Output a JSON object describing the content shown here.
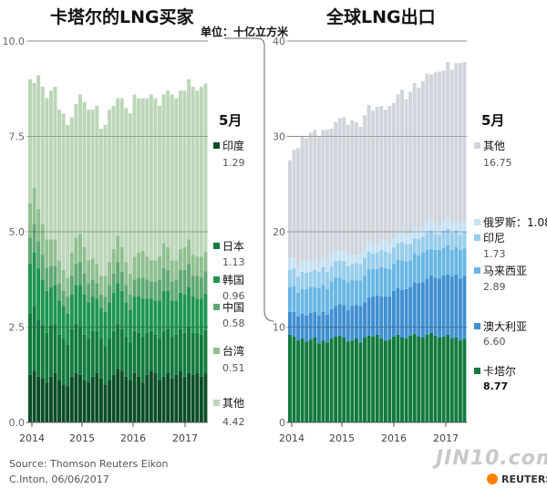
{
  "header": {
    "left_title": "卡塔尔的LNG买家",
    "right_title": "全球LNG出口",
    "unit": "单位：十亿立方米"
  },
  "footer": {
    "source": "Source: Thomson Reuters Eikon",
    "credit": "C.Inton,  06/06/2017",
    "watermark": "JIN10.com",
    "brand": "REUTERS"
  },
  "chart_data": [
    {
      "type": "area",
      "stacked": true,
      "title": "卡塔尔的LNG买家",
      "ylabel": "单位：十亿立方米",
      "ylim": [
        0,
        10
      ],
      "yticks": [
        "0.0",
        "2.5",
        "5.0",
        "7.5",
        "10.0"
      ],
      "xticks": [
        "2014",
        "2015",
        "2016",
        "2017"
      ],
      "month_label": "5月",
      "x_start": "2013-11",
      "x_end": "2017-05",
      "series": [
        {
          "name": "印度",
          "latest": "1.29",
          "color": "#0a4d26",
          "values": [
            1.25,
            1.35,
            1.2,
            1.15,
            1.05,
            1.2,
            1.3,
            1.1,
            1.0,
            0.95,
            1.2,
            1.3,
            1.25,
            1.1,
            1.05,
            1.2,
            1.3,
            1.15,
            1.0,
            1.1,
            1.25,
            1.4,
            1.35,
            1.2,
            1.1,
            1.3,
            1.2,
            1.05,
            1.25,
            1.35,
            1.3,
            1.1,
            1.2,
            1.3,
            1.15,
            1.25,
            1.35,
            1.2,
            1.3,
            1.25,
            1.3,
            1.2,
            1.29
          ]
        },
        {
          "name": "日本",
          "latest": "1.13",
          "color": "#117a3d",
          "values": [
            1.6,
            1.7,
            1.5,
            1.4,
            1.3,
            1.35,
            1.3,
            1.2,
            1.2,
            1.1,
            1.25,
            1.3,
            1.25,
            1.2,
            1.15,
            1.2,
            1.1,
            1.05,
            1.0,
            1.1,
            1.15,
            1.2,
            1.1,
            1.05,
            1.0,
            1.1,
            1.15,
            1.2,
            1.1,
            1.05,
            1.0,
            1.1,
            1.2,
            1.15,
            1.1,
            1.05,
            1.1,
            1.15,
            1.2,
            1.1,
            1.05,
            1.1,
            1.13
          ]
        },
        {
          "name": "韩国",
          "latest": "0.96",
          "color": "#1e9550",
          "values": [
            1.3,
            1.4,
            1.35,
            1.2,
            1.1,
            1.0,
            1.0,
            0.9,
            0.85,
            0.8,
            0.9,
            1.0,
            1.1,
            1.05,
            0.95,
            0.9,
            0.85,
            0.8,
            0.9,
            0.95,
            1.0,
            1.05,
            1.0,
            0.9,
            0.85,
            0.9,
            0.95,
            1.0,
            0.9,
            0.85,
            0.9,
            1.0,
            1.05,
            1.0,
            0.95,
            0.9,
            0.95,
            1.0,
            1.05,
            0.95,
            0.9,
            0.95,
            0.96
          ]
        },
        {
          "name": "中国",
          "latest": "0.58",
          "color": "#5fa873",
          "values": [
            0.7,
            0.75,
            0.7,
            0.65,
            0.6,
            0.55,
            0.5,
            0.45,
            0.4,
            0.45,
            0.5,
            0.55,
            0.6,
            0.55,
            0.5,
            0.45,
            0.4,
            0.35,
            0.4,
            0.45,
            0.5,
            0.55,
            0.5,
            0.45,
            0.4,
            0.45,
            0.5,
            0.55,
            0.5,
            0.45,
            0.5,
            0.55,
            0.6,
            0.55,
            0.5,
            0.55,
            0.6,
            0.65,
            0.6,
            0.55,
            0.6,
            0.55,
            0.58
          ]
        },
        {
          "name": "台湾",
          "latest": "0.51",
          "color": "#8fbf8f",
          "values": [
            0.9,
            0.95,
            0.85,
            0.8,
            0.75,
            0.7,
            0.7,
            0.6,
            0.55,
            0.5,
            0.6,
            0.7,
            0.75,
            0.7,
            0.6,
            0.55,
            0.5,
            0.5,
            0.55,
            0.6,
            0.65,
            0.7,
            0.65,
            0.6,
            0.55,
            0.6,
            0.65,
            0.7,
            0.6,
            0.55,
            0.55,
            0.6,
            0.65,
            0.6,
            0.55,
            0.5,
            0.55,
            0.6,
            0.65,
            0.55,
            0.5,
            0.55,
            0.51
          ]
        },
        {
          "name": "其他",
          "latest": "4.42",
          "color": "#bcd6b8",
          "values": [
            3.25,
            2.75,
            3.5,
            3.6,
            3.7,
            3.9,
            4.0,
            3.95,
            4.1,
            4.0,
            3.55,
            3.5,
            3.65,
            3.8,
            3.95,
            3.9,
            4.15,
            3.85,
            3.95,
            4.0,
            3.75,
            3.6,
            3.9,
            4.05,
            4.2,
            4.25,
            4.05,
            4.0,
            4.15,
            4.35,
            4.25,
            3.95,
            3.9,
            4.1,
            4.35,
            4.25,
            4.15,
            4.1,
            4.2,
            4.4,
            4.35,
            4.45,
            4.42
          ]
        }
      ]
    },
    {
      "type": "area",
      "stacked": true,
      "title": "全球LNG出口",
      "ylim": [
        0,
        40
      ],
      "yticks": [
        "0",
        "10",
        "20",
        "30",
        "40"
      ],
      "xticks": [
        "2014",
        "2015",
        "2016",
        "2017"
      ],
      "month_label": "5月",
      "x_start": "2013-11",
      "x_end": "2017-05",
      "series": [
        {
          "name": "卡塔尔",
          "latest": "8.77",
          "color": "#117a3d",
          "values": [
            9.2,
            9.0,
            8.6,
            8.8,
            8.5,
            8.7,
            8.9,
            8.3,
            8.6,
            8.4,
            8.8,
            9.0,
            9.1,
            8.9,
            8.5,
            8.6,
            8.8,
            8.4,
            8.9,
            9.1,
            9.0,
            9.2,
            8.8,
            8.6,
            8.7,
            9.0,
            9.2,
            8.9,
            8.8,
            9.1,
            9.3,
            9.0,
            8.9,
            9.2,
            9.4,
            9.1,
            8.9,
            9.0,
            9.2,
            8.8,
            8.9,
            8.6,
            8.77
          ]
        },
        {
          "name": "澳大利亚",
          "latest": "6.60",
          "color": "#3f8fd2",
          "values": [
            2.4,
            2.6,
            2.5,
            2.6,
            2.7,
            2.8,
            2.7,
            2.9,
            3.0,
            2.9,
            3.1,
            3.2,
            3.3,
            3.4,
            3.3,
            3.6,
            3.5,
            3.8,
            3.7,
            4.0,
            4.2,
            4.1,
            4.4,
            4.6,
            4.5,
            4.8,
            4.9,
            5.0,
            5.2,
            5.1,
            5.4,
            5.6,
            5.8,
            5.9,
            6.0,
            6.1,
            6.2,
            6.4,
            6.3,
            6.5,
            6.6,
            6.5,
            6.6
          ]
        },
        {
          "name": "马来西亚",
          "latest": "2.89",
          "color": "#68b6e4",
          "values": [
            2.6,
            2.7,
            2.5,
            2.6,
            2.8,
            2.7,
            2.6,
            2.9,
            2.8,
            2.7,
            2.9,
            3.0,
            2.8,
            2.7,
            2.9,
            2.8,
            2.6,
            2.7,
            2.8,
            3.0,
            2.9,
            2.8,
            3.1,
            3.0,
            2.9,
            2.8,
            3.0,
            3.1,
            2.9,
            2.8,
            3.0,
            2.9,
            3.1,
            3.0,
            2.8,
            2.9,
            3.0,
            2.9,
            3.1,
            2.8,
            2.9,
            3.0,
            2.89
          ]
        },
        {
          "name": "印尼",
          "latest": "1.73",
          "color": "#97cdec",
          "values": [
            1.8,
            1.9,
            1.7,
            1.8,
            1.7,
            1.6,
            1.8,
            1.7,
            1.9,
            1.8,
            1.6,
            1.7,
            1.8,
            1.9,
            1.7,
            1.6,
            1.8,
            1.7,
            1.9,
            1.8,
            1.6,
            1.7,
            1.8,
            1.7,
            1.6,
            1.8,
            1.7,
            1.9,
            1.8,
            1.7,
            1.6,
            1.8,
            1.7,
            1.8,
            1.9,
            1.7,
            1.6,
            1.8,
            1.7,
            1.8,
            1.7,
            1.6,
            1.73
          ]
        },
        {
          "name": "俄罗斯",
          "latest": "1.08",
          "color": "#c5e2f3",
          "values": [
            1.2,
            1.1,
            1.0,
            1.1,
            1.2,
            1.1,
            1.0,
            0.9,
            1.0,
            1.1,
            1.2,
            1.1,
            1.0,
            1.1,
            1.2,
            1.0,
            0.9,
            1.0,
            1.1,
            1.2,
            1.1,
            1.0,
            1.1,
            1.2,
            1.1,
            1.0,
            1.1,
            1.2,
            1.0,
            1.1,
            1.2,
            1.1,
            1.0,
            1.1,
            1.2,
            1.1,
            1.0,
            1.1,
            1.2,
            1.1,
            1.0,
            1.1,
            1.08
          ]
        },
        {
          "name": "其他",
          "latest": "16.75",
          "color": "#cfd5db",
          "values": [
            10.3,
            11.3,
            12.5,
            13.1,
            12.9,
            13.5,
            13.7,
            13.2,
            13.4,
            13.8,
            13.2,
            13.5,
            13.9,
            14.0,
            13.6,
            14.1,
            13.9,
            13.4,
            13.8,
            14.2,
            13.9,
            14.3,
            14.0,
            13.7,
            14.4,
            14.1,
            14.5,
            14.8,
            14.2,
            14.9,
            15.1,
            14.7,
            15.3,
            15.6,
            15.2,
            15.8,
            16.1,
            15.7,
            16.3,
            16.0,
            16.6,
            16.9,
            16.75
          ]
        }
      ]
    }
  ]
}
